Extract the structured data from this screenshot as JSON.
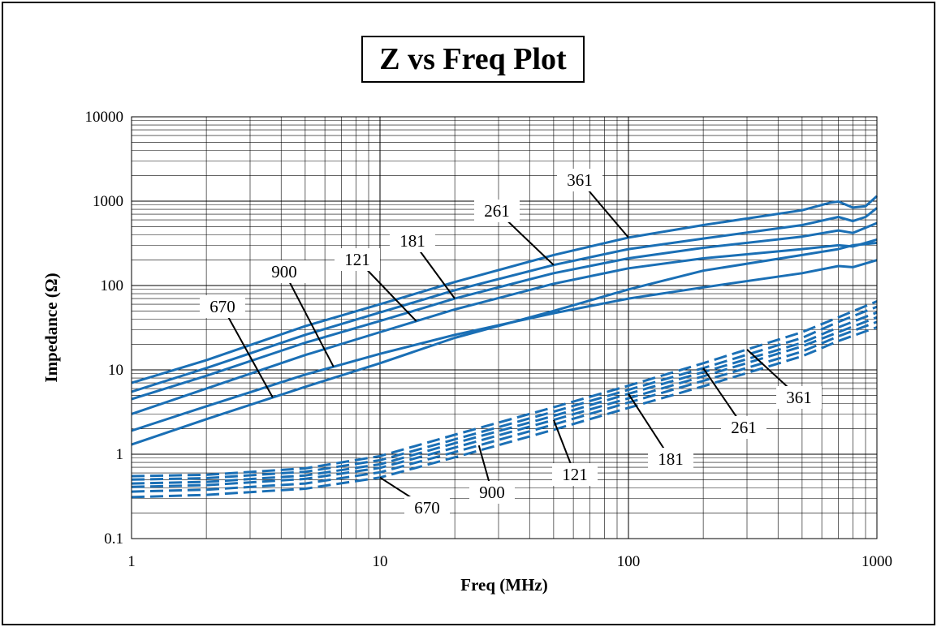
{
  "chart_data": {
    "type": "line",
    "title": "Z vs Freq Plot",
    "xlabel": "Freq (MHz)",
    "ylabel": "Impedance (Ω)",
    "xscale": "log",
    "yscale": "log",
    "xlim": [
      1,
      1000
    ],
    "ylim": [
      0.1,
      10000
    ],
    "x_ticks": [
      "1",
      "10",
      "100",
      "1000"
    ],
    "y_ticks": [
      "0.1",
      "1",
      "10",
      "100",
      "1000",
      "10000"
    ],
    "grid": true,
    "line_color": "#1a6fb5",
    "series": [
      {
        "name": "361",
        "style": "solid",
        "x": [
          1,
          2,
          5,
          10,
          20,
          50,
          100,
          200,
          500,
          650,
          700,
          800,
          900,
          1000
        ],
        "y": [
          7,
          13,
          33,
          60,
          110,
          230,
          370,
          520,
          780,
          960,
          990,
          840,
          870,
          1150
        ]
      },
      {
        "name": "261",
        "style": "solid",
        "x": [
          1,
          2,
          5,
          10,
          20,
          50,
          100,
          200,
          500,
          700,
          800,
          900,
          1000
        ],
        "y": [
          5.5,
          10.5,
          26,
          48,
          88,
          175,
          270,
          360,
          520,
          650,
          580,
          650,
          830
        ]
      },
      {
        "name": "181",
        "style": "solid",
        "x": [
          1,
          2,
          5,
          10,
          20,
          50,
          100,
          200,
          500,
          700,
          800,
          1000
        ],
        "y": [
          4.5,
          8.5,
          21,
          38,
          70,
          140,
          210,
          280,
          380,
          450,
          420,
          550
        ]
      },
      {
        "name": "121",
        "style": "solid",
        "x": [
          1,
          2,
          5,
          10,
          20,
          50,
          100,
          200,
          500,
          700,
          800,
          1000
        ],
        "y": [
          3,
          6,
          15,
          28,
          52,
          105,
          160,
          210,
          270,
          300,
          290,
          350
        ]
      },
      {
        "name": "900",
        "style": "solid",
        "x": [
          1,
          2,
          5,
          10,
          20,
          50,
          100,
          200,
          500,
          700,
          800,
          1000
        ],
        "y": [
          1.9,
          3.7,
          8.8,
          15.5,
          26,
          47,
          70,
          95,
          140,
          170,
          165,
          200
        ]
      },
      {
        "name": "670",
        "style": "solid",
        "x": [
          1,
          2,
          5,
          10,
          20,
          50,
          100,
          200,
          500,
          700,
          800,
          1000
        ],
        "y": [
          1.3,
          2.6,
          6.3,
          12,
          24,
          50,
          90,
          150,
          230,
          270,
          300,
          320
        ]
      },
      {
        "name": "361",
        "style": "dashed",
        "x": [
          1,
          2,
          5,
          10,
          20,
          50,
          100,
          200,
          500,
          700,
          1000
        ],
        "y": [
          0.55,
          0.57,
          0.68,
          0.95,
          1.7,
          3.6,
          6.5,
          12,
          28,
          42,
          65
        ]
      },
      {
        "name": "261",
        "style": "dashed",
        "x": [
          1,
          2,
          5,
          10,
          20,
          50,
          100,
          200,
          500,
          700,
          1000
        ],
        "y": [
          0.5,
          0.52,
          0.62,
          0.85,
          1.5,
          3.2,
          5.8,
          10.5,
          24,
          37,
          56
        ]
      },
      {
        "name": "181",
        "style": "dashed",
        "x": [
          1,
          2,
          5,
          10,
          20,
          50,
          100,
          200,
          500,
          700,
          1000
        ],
        "y": [
          0.45,
          0.47,
          0.56,
          0.76,
          1.35,
          2.85,
          5.2,
          9.4,
          21,
          32,
          48
        ]
      },
      {
        "name": "121",
        "style": "dashed",
        "x": [
          1,
          2,
          5,
          10,
          20,
          50,
          100,
          200,
          500,
          700,
          1000
        ],
        "y": [
          0.41,
          0.43,
          0.51,
          0.69,
          1.2,
          2.55,
          4.6,
          8.4,
          19,
          28,
          42
        ]
      },
      {
        "name": "900",
        "style": "dashed",
        "x": [
          1,
          2,
          5,
          10,
          20,
          50,
          100,
          200,
          500,
          700,
          1000
        ],
        "y": [
          0.36,
          0.38,
          0.45,
          0.61,
          1.06,
          2.25,
          4.1,
          7.4,
          16.5,
          25,
          37
        ]
      },
      {
        "name": "670",
        "style": "dashed",
        "x": [
          1,
          2,
          5,
          10,
          20,
          50,
          100,
          200,
          500,
          700,
          1000
        ],
        "y": [
          0.31,
          0.33,
          0.39,
          0.53,
          0.92,
          1.95,
          3.55,
          6.4,
          14.5,
          22,
          32
        ]
      }
    ],
    "annotations": [
      {
        "text": "361",
        "target_series": 0,
        "target_x": 100
      },
      {
        "text": "261",
        "target_series": 1,
        "target_x": 50
      },
      {
        "text": "181",
        "target_series": 2,
        "target_x": 20
      },
      {
        "text": "121",
        "target_series": 3,
        "target_x": 14
      },
      {
        "text": "900",
        "target_series": 4,
        "target_x": 6.5
      },
      {
        "text": "670",
        "target_series": 5,
        "target_x": 3.7
      },
      {
        "text": "361",
        "target_series": 6,
        "target_x": 300
      },
      {
        "text": "261",
        "target_series": 7,
        "target_x": 200
      },
      {
        "text": "181",
        "target_series": 8,
        "target_x": 100
      },
      {
        "text": "121",
        "target_series": 9,
        "target_x": 50
      },
      {
        "text": "900",
        "target_series": 10,
        "target_x": 25
      },
      {
        "text": "670",
        "target_series": 11,
        "target_x": 10
      }
    ]
  }
}
